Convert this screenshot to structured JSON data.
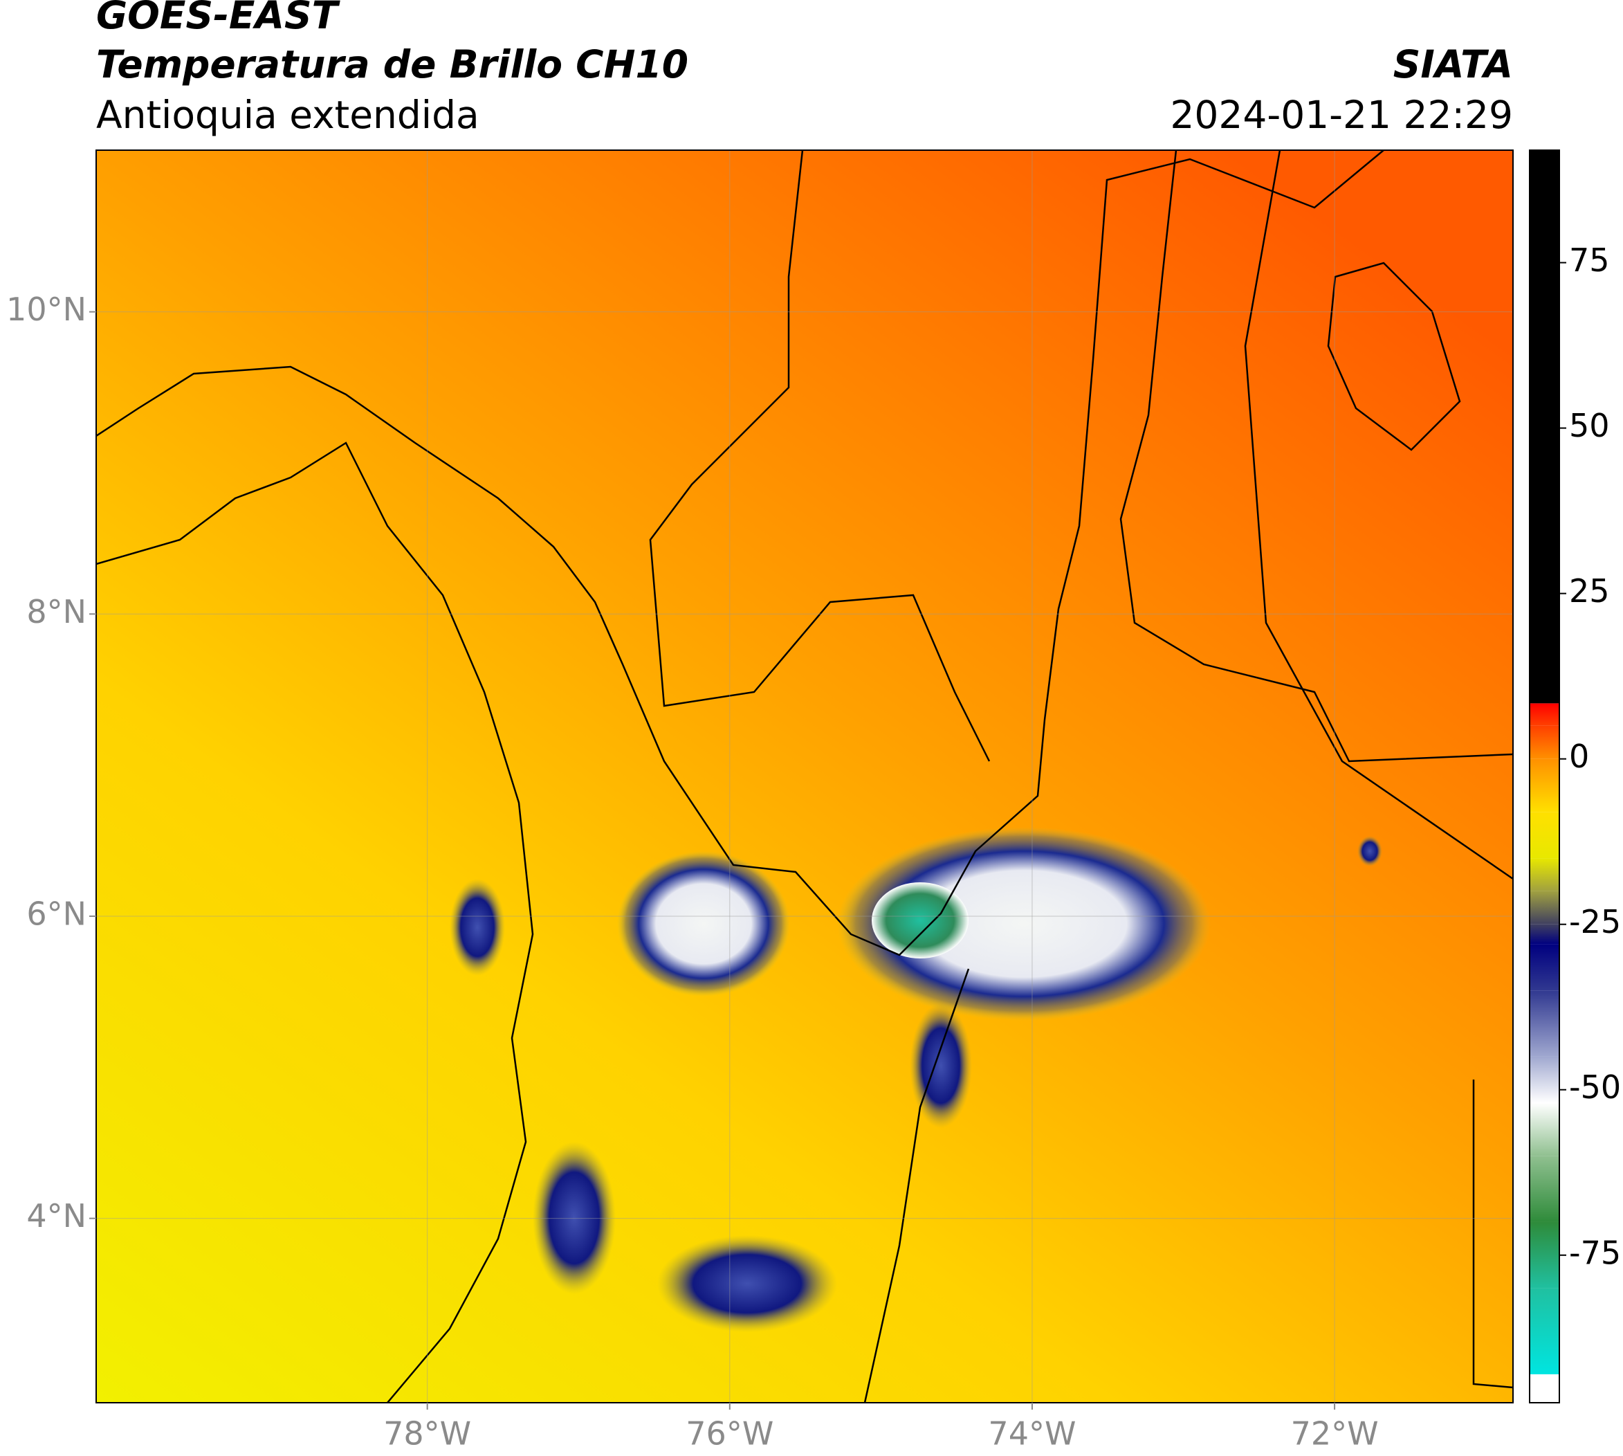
{
  "header": {
    "title": "GOES-EAST",
    "subtitle": "Temperatura de Brillo CH10",
    "region": "Antioquia extendida",
    "source": "SIATA",
    "datetime": "2024-01-21 22:29"
  },
  "map": {
    "xlim": [
      -80.19,
      -70.82
    ],
    "ylim": [
      2.78,
      11.07
    ],
    "xticks": [
      {
        "value": -78,
        "label": "78°W"
      },
      {
        "value": -76,
        "label": "76°W"
      },
      {
        "value": -74,
        "label": "74°W"
      },
      {
        "value": -72,
        "label": "72°W"
      }
    ],
    "yticks": [
      {
        "value": 4,
        "label": "4°N"
      },
      {
        "value": 6,
        "label": "6°N"
      },
      {
        "value": 8,
        "label": "8°N"
      },
      {
        "value": 10,
        "label": "10°N"
      }
    ],
    "grid": true
  },
  "colorbar": {
    "lim": [
      -97.3,
      92
    ],
    "ticks": [
      -75,
      -50,
      -25,
      0,
      25,
      50,
      75
    ],
    "stops": [
      [
        -97.3,
        "#ffffff"
      ],
      [
        -93,
        "#ffffff"
      ],
      [
        -93,
        "#00e5e0"
      ],
      [
        -80,
        "#20c0a0"
      ],
      [
        -70,
        "#2e8b3a"
      ],
      [
        -60,
        "#90c090"
      ],
      [
        -52,
        "#ffffff"
      ],
      [
        -45,
        "#a0a8d0"
      ],
      [
        -35,
        "#303890"
      ],
      [
        -28,
        "#000080"
      ],
      [
        -25,
        "#404060"
      ],
      [
        -20,
        "#a0a040"
      ],
      [
        -15,
        "#e8e800"
      ],
      [
        -8,
        "#ffe000"
      ],
      [
        0,
        "#ff9000"
      ],
      [
        5,
        "#ff4000"
      ],
      [
        8.4,
        "#ff0000"
      ],
      [
        8.4,
        "#000000"
      ],
      [
        92,
        "#000000"
      ]
    ]
  }
}
